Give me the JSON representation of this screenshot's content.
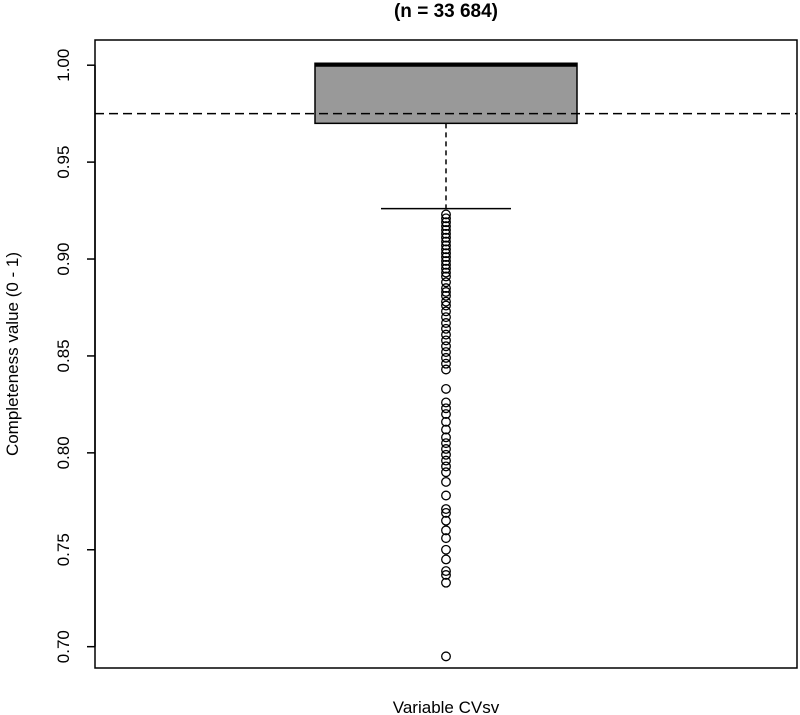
{
  "chart_data": {
    "type": "boxplot",
    "title": "(n = 33 684)",
    "xlabel": "Variable CVsv",
    "ylabel": "Completeness value (0 - 1)",
    "ylim": [
      0.689,
      1.013
    ],
    "yticks": [
      0.7,
      0.75,
      0.8,
      0.85,
      0.9,
      0.95,
      1.0
    ],
    "ytick_labels": [
      "0.70",
      "0.75",
      "0.80",
      "0.85",
      "0.90",
      "0.95",
      "1.00"
    ],
    "grid": false,
    "box": {
      "q1": 0.97,
      "median": 1.0,
      "q3": 1.001,
      "whisker_low": 0.926,
      "whisker_high": 1.001,
      "fill": "#999999"
    },
    "reference_line": {
      "value": 0.975,
      "style": "dashed"
    },
    "outliers": [
      0.923,
      0.921,
      0.919,
      0.917,
      0.915,
      0.913,
      0.911,
      0.909,
      0.907,
      0.905,
      0.903,
      0.901,
      0.899,
      0.897,
      0.895,
      0.893,
      0.891,
      0.888,
      0.885,
      0.883,
      0.881,
      0.878,
      0.876,
      0.873,
      0.87,
      0.867,
      0.864,
      0.861,
      0.858,
      0.855,
      0.852,
      0.849,
      0.846,
      0.843,
      0.833,
      0.826,
      0.823,
      0.82,
      0.816,
      0.812,
      0.808,
      0.805,
      0.802,
      0.799,
      0.796,
      0.793,
      0.79,
      0.785,
      0.778,
      0.771,
      0.769,
      0.765,
      0.76,
      0.756,
      0.75,
      0.745,
      0.739,
      0.737,
      0.733,
      0.695
    ]
  }
}
